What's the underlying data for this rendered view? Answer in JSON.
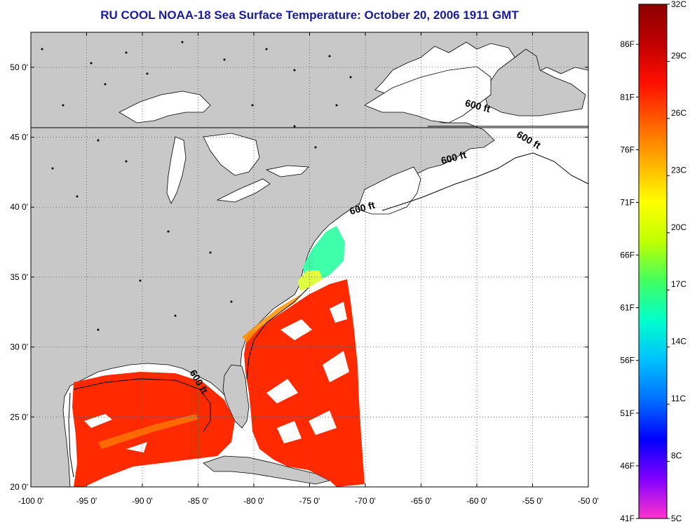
{
  "title": "RU COOL  NOAA-18  Sea Surface Temperature:  October 20, 2006 1911 GMT",
  "map": {
    "lon_range": [
      -100,
      -50
    ],
    "lat_range": [
      20,
      52.5
    ],
    "lon_ticks": [
      {
        "value": -100,
        "label": "-100 0'"
      },
      {
        "value": -95,
        "label": "-95 0'"
      },
      {
        "value": -90,
        "label": "-90 0'"
      },
      {
        "value": -85,
        "label": "-85 0'"
      },
      {
        "value": -80,
        "label": "-80 0'"
      },
      {
        "value": -75,
        "label": "-75 0'"
      },
      {
        "value": -70,
        "label": "-70 0'"
      },
      {
        "value": -65,
        "label": "-65 0'"
      },
      {
        "value": -60,
        "label": "-60 0'"
      },
      {
        "value": -55,
        "label": "-55 0'"
      },
      {
        "value": -50,
        "label": "-50 0'"
      }
    ],
    "lat_ticks": [
      {
        "value": 20,
        "label": "20 0'"
      },
      {
        "value": 25,
        "label": "25 0'"
      },
      {
        "value": 30,
        "label": "30 0'"
      },
      {
        "value": 35,
        "label": "35 0'"
      },
      {
        "value": 40,
        "label": "40 0'"
      },
      {
        "value": 45,
        "label": "45 0'"
      },
      {
        "value": 50,
        "label": "50 0'"
      }
    ],
    "grid": "dotted",
    "land_color": "#c8c8c8",
    "isobath_label": "600 ft",
    "isobath_labels": [
      {
        "text": "600 ft",
        "lon": -60.0,
        "lat": 47.0,
        "rotate": 15
      },
      {
        "text": "600 ft",
        "lon": -55.5,
        "lat": 44.6,
        "rotate": 30
      },
      {
        "text": "600 ft",
        "lon": -62.0,
        "lat": 43.3,
        "rotate": -15
      },
      {
        "text": "600 ft",
        "lon": -70.2,
        "lat": 39.7,
        "rotate": -15
      },
      {
        "text": "600 ft",
        "lon": -85.2,
        "lat": 27.4,
        "rotate": 60
      }
    ]
  },
  "colorbar": {
    "colors": [
      "#ff33cc",
      "#8000ff",
      "#0000ff",
      "#0070ff",
      "#00c0ff",
      "#00ffcc",
      "#40ff60",
      "#c0ff00",
      "#ffff00",
      "#ffb000",
      "#ff6000",
      "#ff1000",
      "#c00000",
      "#8b0000"
    ],
    "celsius_labels": [
      "5C",
      "8C",
      "11C",
      "14C",
      "17C",
      "20C",
      "23C",
      "26C",
      "29C",
      "32C"
    ],
    "fahrenheit_labels": [
      "41F",
      "46F",
      "51F",
      "56F",
      "61F",
      "66F",
      "71F",
      "76F",
      "81F",
      "86F"
    ]
  }
}
